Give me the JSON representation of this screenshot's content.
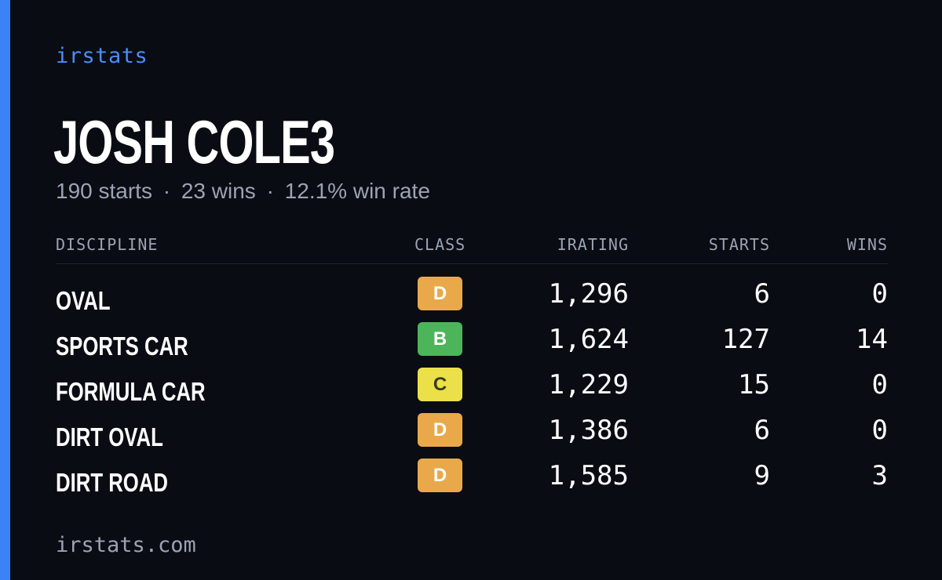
{
  "brand": "irstats",
  "driver": {
    "name": "JOSH COLE3",
    "starts": "190 starts",
    "wins": "23 wins",
    "win_rate": "12.1% win rate",
    "separator": "·"
  },
  "table": {
    "headers": {
      "discipline": "DISCIPLINE",
      "class": "CLASS",
      "irating": "IRATING",
      "starts": "STARTS",
      "wins": "WINS"
    },
    "rows": [
      {
        "discipline": "OVAL",
        "class": "D",
        "irating": "1,296",
        "starts": "6",
        "wins": "0"
      },
      {
        "discipline": "SPORTS CAR",
        "class": "B",
        "irating": "1,624",
        "starts": "127",
        "wins": "14"
      },
      {
        "discipline": "FORMULA CAR",
        "class": "C",
        "irating": "1,229",
        "starts": "15",
        "wins": "0"
      },
      {
        "discipline": "DIRT OVAL",
        "class": "D",
        "irating": "1,386",
        "starts": "6",
        "wins": "0"
      },
      {
        "discipline": "DIRT ROAD",
        "class": "D",
        "irating": "1,585",
        "starts": "9",
        "wins": "3"
      }
    ]
  },
  "class_colors": {
    "B": {
      "bg": "#4cb55a",
      "fg": "#ffffff"
    },
    "C": {
      "bg": "#ece04a",
      "fg": "#3a3a1a"
    },
    "D": {
      "bg": "#e9a94a",
      "fg": "#ffffff"
    }
  },
  "colors": {
    "accent": "#3b82f6",
    "background": "#0a0c13",
    "muted_text": "#9ca3b4"
  },
  "footer": "irstats.com"
}
